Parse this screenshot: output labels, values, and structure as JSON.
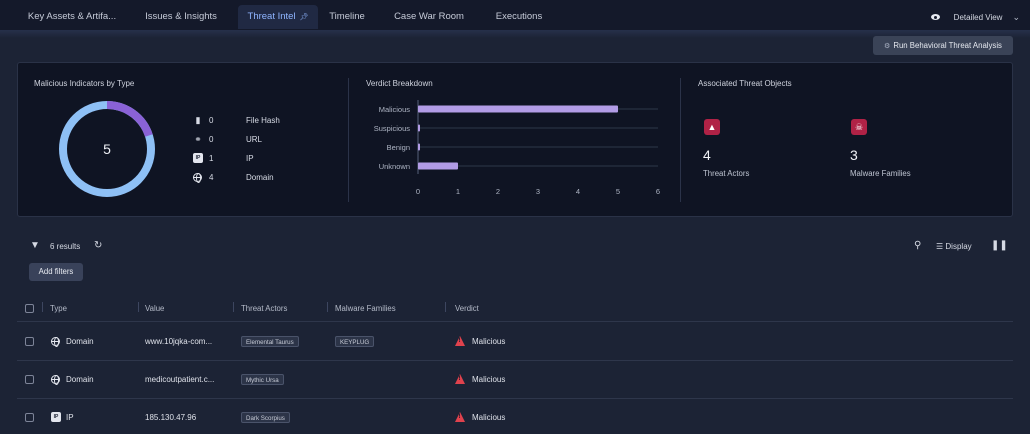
{
  "tabs": [
    {
      "label": "Key Assets & Artifa...",
      "active": false
    },
    {
      "label": "Issues & Insights",
      "active": false
    },
    {
      "label": "Threat Intel",
      "active": true
    },
    {
      "label": "Timeline",
      "active": false
    },
    {
      "label": "Case War Room",
      "active": false
    },
    {
      "label": "Executions",
      "active": false
    }
  ],
  "view_label": "Detailed View",
  "run_button": "Run Behavioral Threat Analysis",
  "indicators": {
    "title": "Malicious Indicators by Type",
    "total": "5",
    "rows": [
      {
        "icon": "file-icon",
        "count": "0",
        "label": "File Hash"
      },
      {
        "icon": "link-icon",
        "count": "0",
        "label": "URL"
      },
      {
        "icon": "ip-icon",
        "count": "1",
        "label": "IP"
      },
      {
        "icon": "globe-icon",
        "count": "4",
        "label": "Domain"
      }
    ]
  },
  "verdict": {
    "title": "Verdict Breakdown"
  },
  "chart_data": {
    "type": "bar",
    "orientation": "horizontal",
    "categories": [
      "Malicious",
      "Suspicious",
      "Benign",
      "Unknown"
    ],
    "values": [
      5,
      0,
      0,
      1
    ],
    "xlim": [
      0,
      6
    ],
    "xticks": [
      "0",
      "1",
      "2",
      "3",
      "4",
      "5",
      "6"
    ],
    "grid": true,
    "bar_color": "#b29ce6"
  },
  "associated": {
    "title": "Associated Threat Objects",
    "threat_actors": {
      "count": "4",
      "label": "Threat Actors"
    },
    "malware_families": {
      "count": "3",
      "label": "Malware Families"
    }
  },
  "toolbar": {
    "results": "6 results",
    "add_filters": "Add filters",
    "display": "Display"
  },
  "table": {
    "columns": [
      "Type",
      "Value",
      "Threat Actors",
      "Malware Families",
      "Verdict"
    ],
    "rows": [
      {
        "type": "Domain",
        "type_icon": "globe-icon",
        "value": "www.10jqka-com...",
        "actor": "Elemental Taurus",
        "malware": "KEYPLUG",
        "verdict": "Malicious"
      },
      {
        "type": "Domain",
        "type_icon": "globe-icon",
        "value": "medicoutpatient.c...",
        "actor": "Mythic Ursa",
        "malware": "",
        "verdict": "Malicious"
      },
      {
        "type": "IP",
        "type_icon": "ip-icon",
        "value": "185.130.47.96",
        "actor": "Dark Scorpius",
        "malware": "",
        "verdict": "Malicious"
      }
    ]
  },
  "colors": {
    "accent": "#8fb5ff",
    "donut_main": "#8ec0f5",
    "donut_highlight": "#8a62d6",
    "malicious": "#e0424d",
    "threat_tile": "#b02246"
  }
}
